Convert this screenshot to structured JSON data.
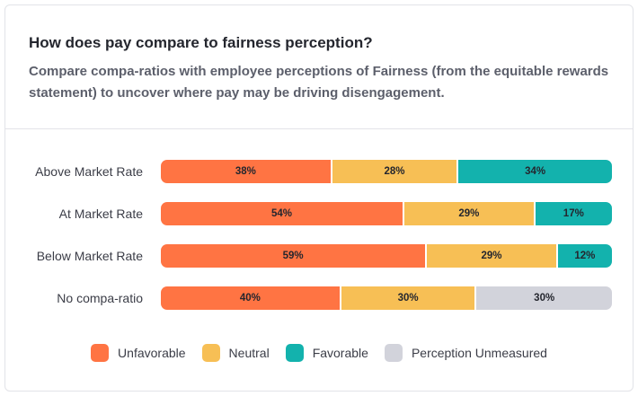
{
  "header": {
    "title": "How does pay compare to fairness perception?",
    "subtitle": "Compare compa-ratios with employee perceptions of Fairness (from the equitable rewards statement) to uncover where pay may be driving disengagement."
  },
  "colors": {
    "Unfavorable": "#ff7443",
    "Neutral": "#f7bf55",
    "Favorable": "#13b2ad",
    "Perception Unmeasured": "#d2d3db"
  },
  "chart_data": {
    "type": "bar",
    "orientation": "horizontal",
    "stacked": true,
    "normalized_percent": true,
    "categories": [
      "Above Market Rate",
      "At Market Rate",
      "Below Market Rate",
      "No compa-ratio"
    ],
    "series": [
      {
        "name": "Unfavorable",
        "values": [
          38,
          54,
          59,
          40
        ]
      },
      {
        "name": "Neutral",
        "values": [
          28,
          29,
          29,
          30
        ]
      },
      {
        "name": "Favorable",
        "values": [
          34,
          17,
          12,
          0
        ]
      },
      {
        "name": "Perception Unmeasured",
        "values": [
          0,
          0,
          0,
          30
        ]
      }
    ],
    "legend": {
      "placement": "bottom",
      "items": [
        "Unfavorable",
        "Neutral",
        "Favorable",
        "Perception Unmeasured"
      ]
    },
    "grid": false
  }
}
